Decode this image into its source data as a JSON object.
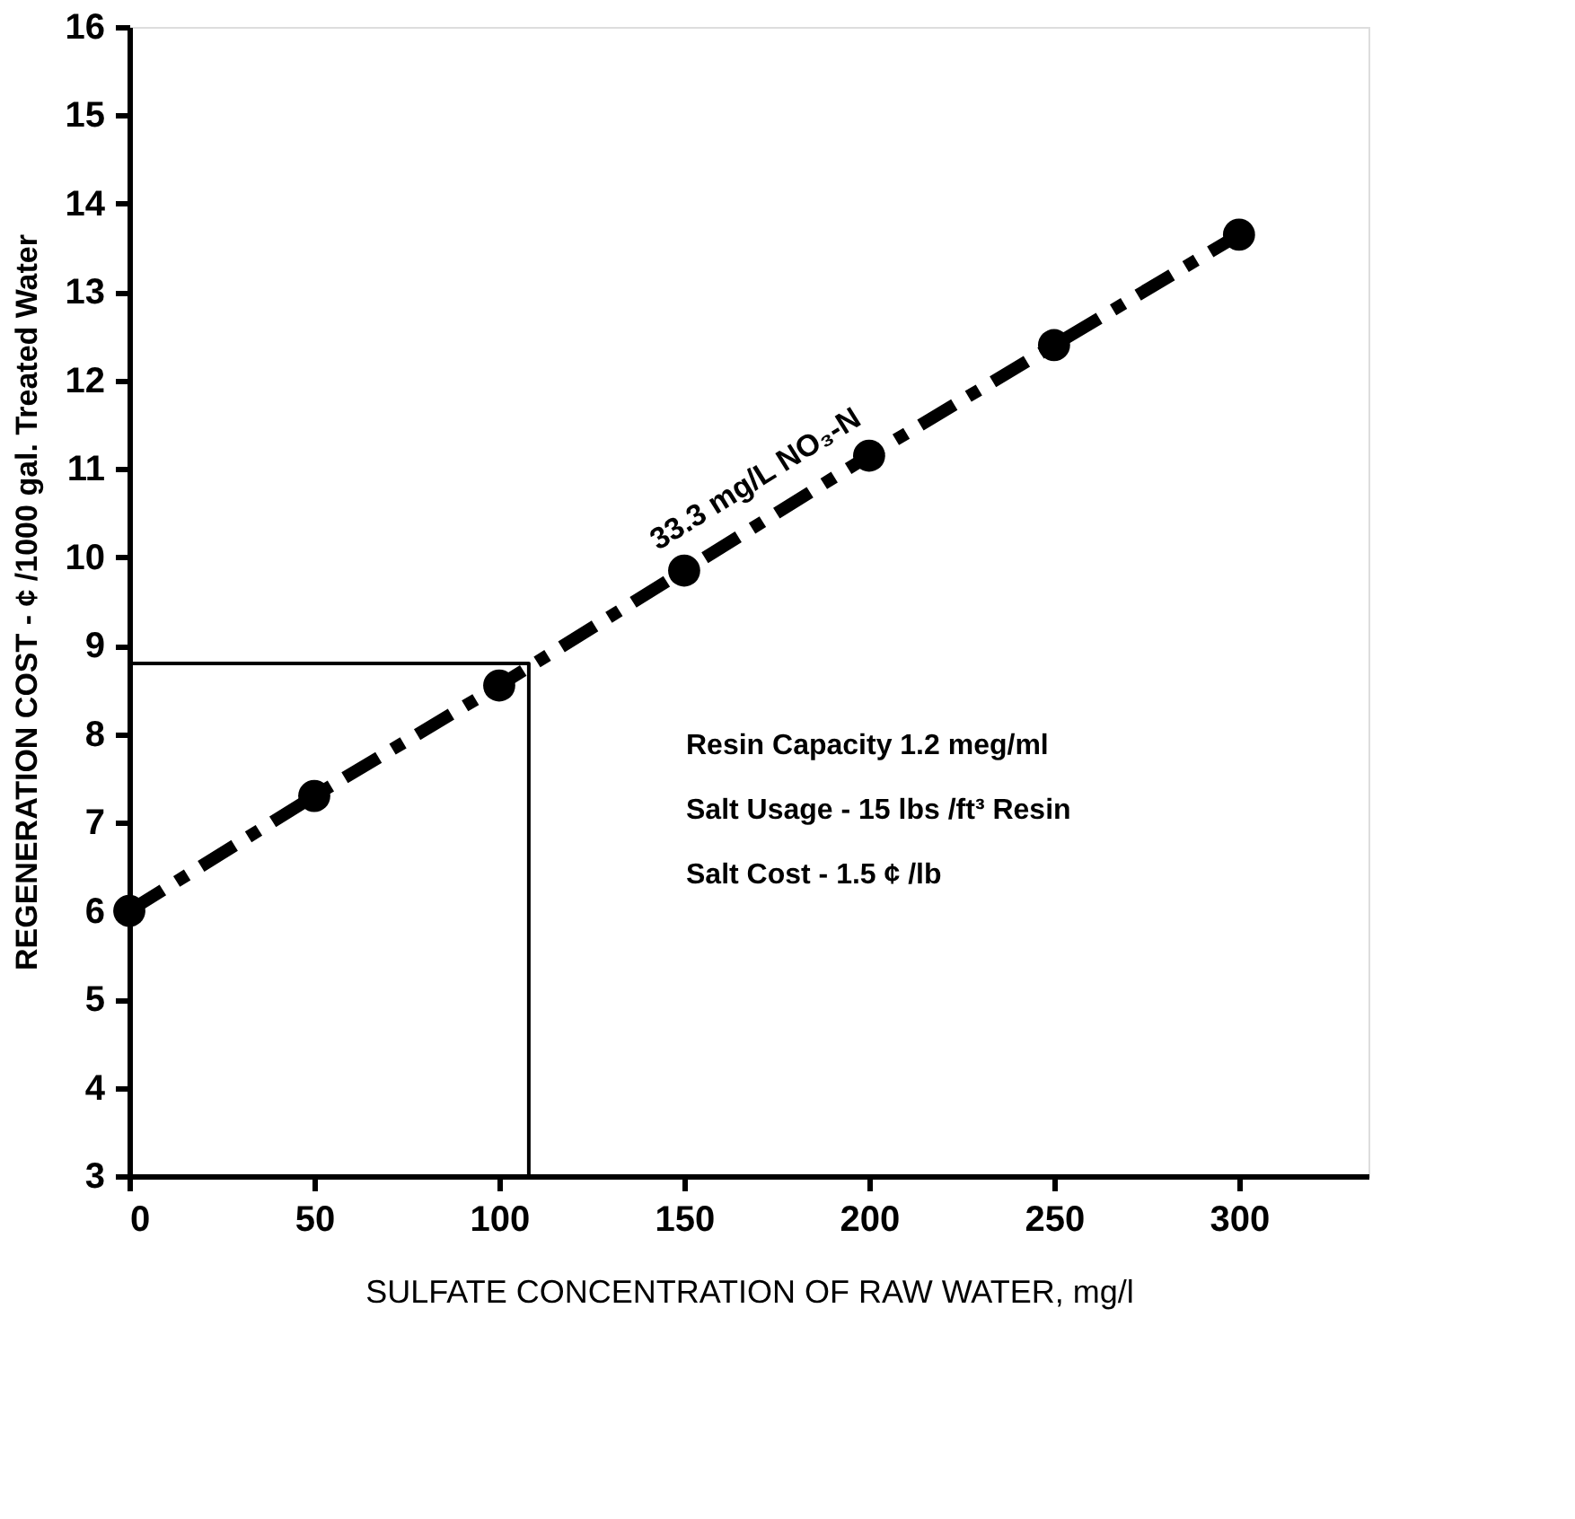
{
  "chart_data": {
    "type": "line",
    "xlabel": "SULFATE CONCENTRATION OF RAW WATER, mg/l",
    "ylabel": "REGENERATION COST - ¢ /1000 gal. Treated Water",
    "xlim": [
      0,
      335
    ],
    "xticks": [
      0,
      50,
      100,
      150,
      200,
      250,
      300
    ],
    "ylim": [
      3,
      16
    ],
    "yticks": [
      3,
      4,
      5,
      6,
      7,
      8,
      9,
      10,
      11,
      12,
      13,
      14,
      15,
      16
    ],
    "grid": false,
    "series": [
      {
        "name": "33.3 mg/L NO₃-N",
        "color": "#000000",
        "marker": "circle",
        "line_style": "dashed",
        "x": [
          0,
          50,
          100,
          150,
          200,
          250,
          300
        ],
        "values": [
          6.0,
          7.3,
          8.55,
          9.85,
          11.15,
          12.4,
          13.65
        ]
      },
      {
        "type": "line",
        "color": "#000000",
        "marker": "none",
        "line_style": "solid",
        "x": [
          108,
          108,
          0
        ],
        "values": [
          3,
          8.8,
          8.8
        ]
      }
    ],
    "annotations": [
      "Resin Capacity 1.2 meg/ml",
      "Salt Usage - 15 lbs /ft³ Resin",
      "Salt Cost - 1.5 ¢ /lb"
    ]
  }
}
